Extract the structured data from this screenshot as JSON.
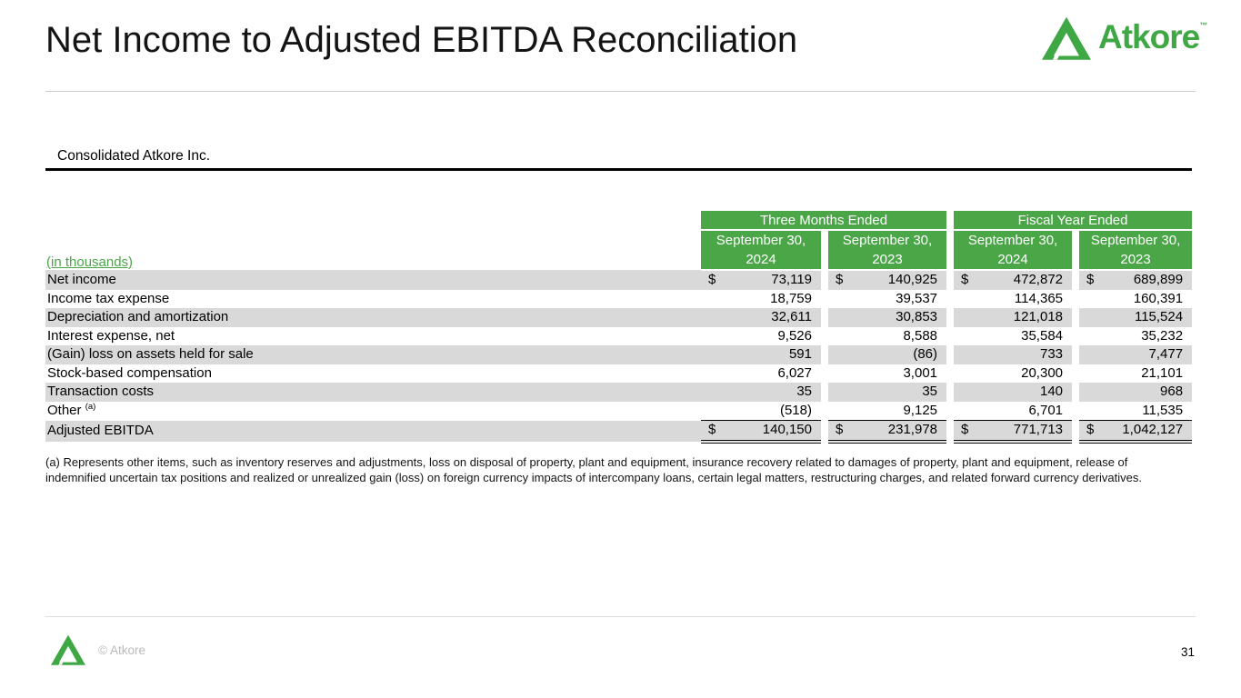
{
  "slide": {
    "title": "Net Income to Adjusted EBITDA Reconciliation",
    "subtitle": "Consolidated Atkore Inc.",
    "brand": "Atkore",
    "trademark": "™",
    "copyright": "© Atkore",
    "page_number": "31"
  },
  "colors": {
    "brand_green": "#3fa845",
    "header_green": "#4ba648",
    "stripe_gray": "#d9d9d9"
  },
  "table": {
    "units_label": "(in thousands)",
    "currency_symbol": "$",
    "group_headers": [
      "Three Months Ended",
      "Fiscal Year Ended"
    ],
    "column_headers": [
      "September 30,\n2024",
      "September 30,\n2023",
      "September 30,\n2024",
      "September 30,\n2023"
    ],
    "rows": [
      {
        "label": "Net income",
        "dollar": true,
        "values": [
          "73,119",
          "140,925",
          "472,872",
          "689,899"
        ]
      },
      {
        "label": "Income tax expense",
        "values": [
          "18,759",
          "39,537",
          "114,365",
          "160,391"
        ]
      },
      {
        "label": "Depreciation and amortization",
        "values": [
          "32,611",
          "30,853",
          "121,018",
          "115,524"
        ]
      },
      {
        "label": "Interest expense, net",
        "values": [
          "9,526",
          "8,588",
          "35,584",
          "35,232"
        ]
      },
      {
        "label": "(Gain) loss on assets held for sale",
        "values": [
          "591",
          "(86)",
          "733",
          "7,477"
        ]
      },
      {
        "label": "Stock-based compensation",
        "values": [
          "6,027",
          "3,001",
          "20,300",
          "21,101"
        ]
      },
      {
        "label": "Transaction costs",
        "values": [
          "35",
          "35",
          "140",
          "968"
        ]
      },
      {
        "label": "Other",
        "superscript": "(a)",
        "values": [
          "(518)",
          "9,125",
          "6,701",
          "11,535"
        ]
      },
      {
        "label": "Adjusted EBITDA",
        "dollar": true,
        "total": true,
        "values": [
          "140,150",
          "231,978",
          "771,713",
          "1,042,127"
        ]
      }
    ]
  },
  "footnote": "(a) Represents other items, such as inventory reserves and adjustments, loss on disposal of property, plant and equipment, insurance recovery related to damages of property, plant and equipment, release of indemnified uncertain tax positions and realized or unrealized gain (loss) on foreign currency impacts of intercompany loans, certain legal matters, restructuring charges, and related forward currency derivatives."
}
